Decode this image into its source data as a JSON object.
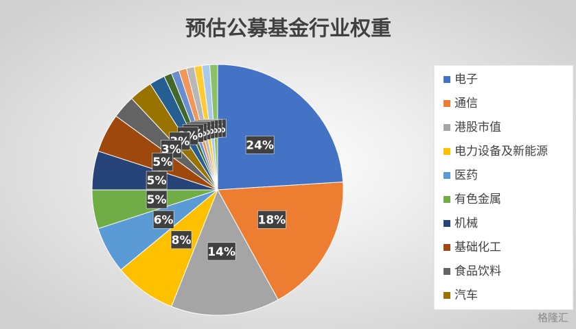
{
  "chart_data": {
    "type": "pie",
    "title": "预估公募基金行业权重",
    "categories": [
      "电子",
      "通信",
      "港股市值",
      "电力设备及新能源",
      "医药",
      "有色金属",
      "机械",
      "基础化工",
      "食品饮料",
      "汽车",
      null,
      null,
      null,
      null,
      null,
      null,
      null,
      null
    ],
    "values": [
      24,
      18,
      14,
      8,
      6,
      5,
      5,
      5,
      3,
      3,
      2,
      1,
      1,
      1,
      1,
      1,
      1,
      1
    ],
    "value_labels": [
      "24%",
      "18%",
      "14%",
      "8%",
      "6%",
      "5%",
      "5%",
      "5%",
      "3%",
      "3%",
      "2%",
      "1%",
      "1%",
      "1%",
      "1%",
      "1%",
      "1%",
      "1%"
    ],
    "colors": [
      "#4472c4",
      "#ed7d31",
      "#a5a5a5",
      "#ffc000",
      "#5b9bd5",
      "#70ad47",
      "#264478",
      "#9e480e",
      "#636363",
      "#997300",
      "#255e91",
      "#43682b",
      "#698ed0",
      "#f1975a",
      "#b7b7b7",
      "#ffcd33",
      "#a9c9ea",
      "#8cc168"
    ],
    "legend": "right",
    "watermark": "格隆汇"
  }
}
